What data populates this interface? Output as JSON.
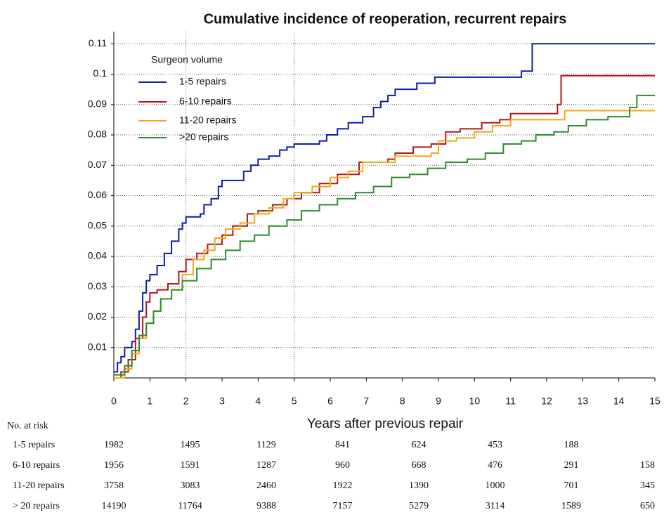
{
  "chart_data": {
    "type": "step",
    "title": "Cumulative incidence of reoperation, recurrent repairs",
    "x_label": "Years after previous repair",
    "legend_title": "Surgeon volume",
    "xlim": [
      0,
      15
    ],
    "ylim": [
      0,
      0.114
    ],
    "xticks": [
      0,
      1,
      2,
      3,
      4,
      5,
      6,
      7,
      8,
      9,
      10,
      11,
      12,
      13,
      14,
      15
    ],
    "yticks": [
      0.01,
      0.02,
      0.03,
      0.04,
      0.05,
      0.06,
      0.07,
      0.08,
      0.09,
      0.1,
      0.11
    ],
    "grid": true,
    "x_gridlines": [
      2,
      5
    ],
    "series": [
      {
        "name": "1-5 repairs",
        "color": "#0a1fa8",
        "x": [
          0,
          0.1,
          0.2,
          0.3,
          0.5,
          0.6,
          0.7,
          0.8,
          0.9,
          1.0,
          1.2,
          1.4,
          1.6,
          1.8,
          1.9,
          2.0,
          2.4,
          2.5,
          2.7,
          2.9,
          3.0,
          3.6,
          3.8,
          4.0,
          4.3,
          4.6,
          4.8,
          5.0,
          5.7,
          5.9,
          6.2,
          6.5,
          6.9,
          7.2,
          7.4,
          7.6,
          7.8,
          8.4,
          8.9,
          11.3,
          11.6,
          15
        ],
        "values": [
          0.002,
          0.005,
          0.007,
          0.01,
          0.012,
          0.016,
          0.022,
          0.028,
          0.032,
          0.034,
          0.037,
          0.041,
          0.045,
          0.049,
          0.051,
          0.053,
          0.054,
          0.057,
          0.059,
          0.063,
          0.065,
          0.068,
          0.07,
          0.072,
          0.073,
          0.075,
          0.076,
          0.077,
          0.078,
          0.08,
          0.082,
          0.084,
          0.086,
          0.089,
          0.091,
          0.093,
          0.095,
          0.097,
          0.099,
          0.101,
          0.11,
          0.11
        ]
      },
      {
        "name": "6-10 repairs",
        "color": "#b01818",
        "x": [
          0,
          0.2,
          0.4,
          0.6,
          0.8,
          0.9,
          1.0,
          1.2,
          1.5,
          1.8,
          2.0,
          2.3,
          2.6,
          3.0,
          3.3,
          3.7,
          4.0,
          4.4,
          4.8,
          5.2,
          5.7,
          6.2,
          6.8,
          7.6,
          7.8,
          8.3,
          8.8,
          9.2,
          9.6,
          10.2,
          10.7,
          11.0,
          12.3,
          12.4,
          15
        ],
        "values": [
          0,
          0.002,
          0.006,
          0.013,
          0.02,
          0.025,
          0.028,
          0.029,
          0.031,
          0.035,
          0.039,
          0.041,
          0.044,
          0.047,
          0.05,
          0.054,
          0.055,
          0.057,
          0.059,
          0.061,
          0.064,
          0.067,
          0.071,
          0.072,
          0.074,
          0.076,
          0.077,
          0.081,
          0.082,
          0.084,
          0.085,
          0.087,
          0.09,
          0.0995,
          0.0995
        ]
      },
      {
        "name": "11-20 repairs",
        "color": "#f0a818",
        "x": [
          0,
          0.3,
          0.5,
          0.7,
          0.9,
          1.1,
          1.3,
          1.6,
          1.9,
          2.2,
          2.5,
          2.8,
          3.1,
          3.5,
          3.9,
          4.3,
          4.7,
          5.0,
          5.5,
          6.0,
          6.5,
          6.9,
          7.8,
          8.8,
          9.0,
          9.5,
          10.0,
          10.5,
          11.0,
          12.5,
          15
        ],
        "values": [
          0,
          0.003,
          0.008,
          0.013,
          0.018,
          0.022,
          0.026,
          0.029,
          0.034,
          0.039,
          0.042,
          0.046,
          0.049,
          0.051,
          0.054,
          0.056,
          0.059,
          0.061,
          0.063,
          0.066,
          0.068,
          0.071,
          0.073,
          0.074,
          0.078,
          0.079,
          0.081,
          0.083,
          0.085,
          0.088,
          0.088
        ]
      },
      {
        "name": ">20 repairs",
        "color": "#2e8b2e",
        "x": [
          0,
          0.3,
          0.5,
          0.7,
          0.9,
          1.1,
          1.3,
          1.6,
          1.9,
          2.3,
          2.7,
          3.1,
          3.5,
          3.9,
          4.3,
          4.8,
          5.2,
          5.7,
          6.2,
          6.7,
          7.2,
          7.7,
          8.2,
          8.7,
          9.2,
          9.8,
          10.3,
          10.8,
          11.3,
          11.7,
          12.2,
          12.6,
          13.1,
          13.7,
          14.3,
          14.5,
          15
        ],
        "values": [
          0.001,
          0.004,
          0.009,
          0.014,
          0.018,
          0.022,
          0.026,
          0.029,
          0.032,
          0.036,
          0.039,
          0.042,
          0.045,
          0.047,
          0.05,
          0.052,
          0.055,
          0.057,
          0.059,
          0.061,
          0.063,
          0.066,
          0.067,
          0.069,
          0.071,
          0.072,
          0.074,
          0.077,
          0.078,
          0.08,
          0.081,
          0.083,
          0.085,
          0.086,
          0.089,
          0.093,
          0.093
        ]
      }
    ],
    "risk_table": {
      "title": "No. at risk",
      "rows": [
        {
          "label": "1-5 repairs",
          "values": [
            1982,
            1495,
            1129,
            841,
            624,
            453,
            188,
            null
          ]
        },
        {
          "label": "6-10 repairs",
          "values": [
            1956,
            1591,
            1287,
            960,
            668,
            476,
            291,
            158
          ]
        },
        {
          "label": "11-20 repairs",
          "values": [
            3758,
            3083,
            2460,
            1922,
            1390,
            1000,
            701,
            345
          ]
        },
        {
          "label": "> 20 repairs",
          "values": [
            14190,
            11764,
            9388,
            7157,
            5279,
            3114,
            1589,
            650
          ]
        }
      ]
    }
  }
}
